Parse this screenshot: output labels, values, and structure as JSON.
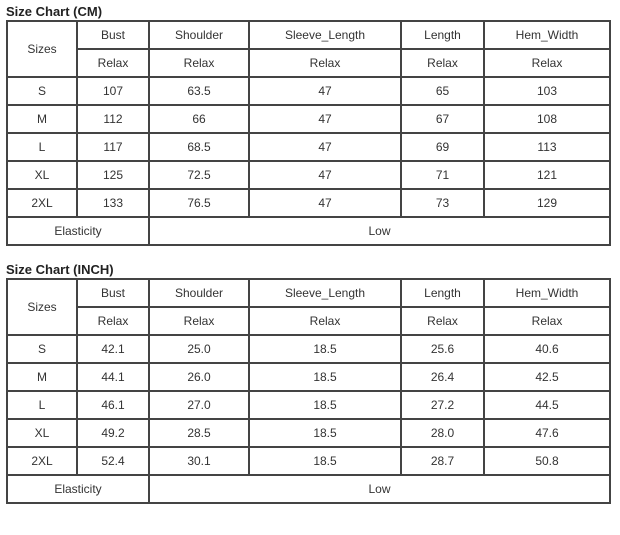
{
  "tables": [
    {
      "title": "Size Chart (CM)",
      "sizes_label": "Sizes",
      "headers": [
        "Bust",
        "Shoulder",
        "Sleeve_Length",
        "Length",
        "Hem_Width"
      ],
      "fit": [
        "Relax",
        "Relax",
        "Relax",
        "Relax",
        "Relax"
      ],
      "rows": [
        [
          "S",
          "107",
          "63.5",
          "47",
          "65",
          "103"
        ],
        [
          "M",
          "112",
          "66",
          "47",
          "67",
          "108"
        ],
        [
          "L",
          "117",
          "68.5",
          "47",
          "69",
          "113"
        ],
        [
          "XL",
          "125",
          "72.5",
          "47",
          "71",
          "121"
        ],
        [
          "2XL",
          "133",
          "76.5",
          "47",
          "73",
          "129"
        ]
      ],
      "elasticity_label": "Elasticity",
      "elasticity_value": "Low"
    },
    {
      "title": "Size Chart (INCH)",
      "sizes_label": "Sizes",
      "headers": [
        "Bust",
        "Shoulder",
        "Sleeve_Length",
        "Length",
        "Hem_Width"
      ],
      "fit": [
        "Relax",
        "Relax",
        "Relax",
        "Relax",
        "Relax"
      ],
      "rows": [
        [
          "S",
          "42.1",
          "25.0",
          "18.5",
          "25.6",
          "40.6"
        ],
        [
          "M",
          "44.1",
          "26.0",
          "18.5",
          "26.4",
          "42.5"
        ],
        [
          "L",
          "46.1",
          "27.0",
          "18.5",
          "27.2",
          "44.5"
        ],
        [
          "XL",
          "49.2",
          "28.5",
          "18.5",
          "28.0",
          "47.6"
        ],
        [
          "2XL",
          "52.4",
          "30.1",
          "18.5",
          "28.7",
          "50.8"
        ]
      ],
      "elasticity_label": "Elasticity",
      "elasticity_value": "Low"
    }
  ]
}
